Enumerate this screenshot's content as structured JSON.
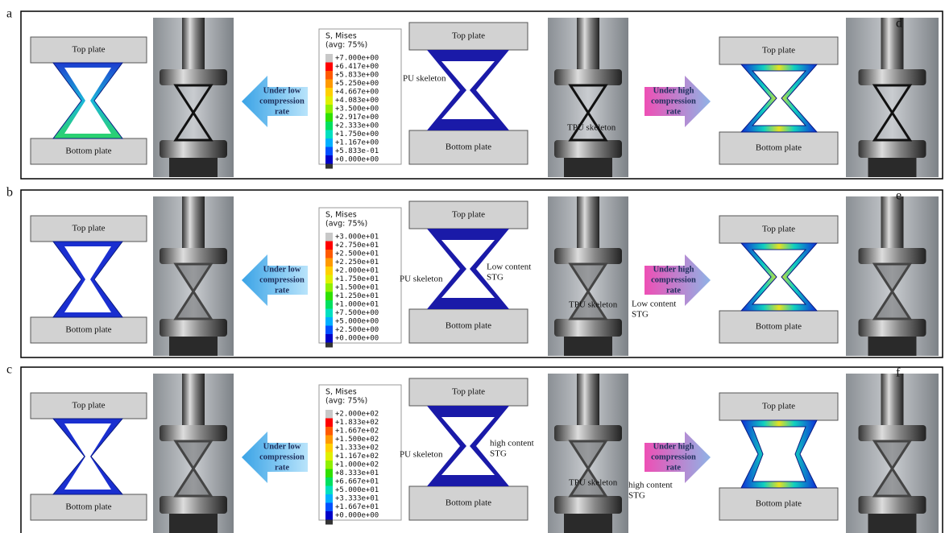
{
  "panels": [
    {
      "label": "a",
      "photo_label": "d",
      "left": {
        "top_plate": "Top plate",
        "bottom_plate": "Bottom plate"
      },
      "arrow_left": [
        "Under low",
        "compression",
        "rate"
      ],
      "legend": {
        "title": "S, Mises",
        "subtitle": "(avg: 75%)",
        "values": [
          "+7.000e+00",
          "+6.417e+00",
          "+5.833e+00",
          "+5.250e+00",
          "+4.667e+00",
          "+4.083e+00",
          "+3.500e+00",
          "+2.917e+00",
          "+2.333e+00",
          "+1.750e+00",
          "+1.167e+00",
          "+5.833e-01",
          "+0.000e+00"
        ]
      },
      "middle": {
        "top_plate": "Top plate",
        "bottom_plate": "Bottom plate",
        "annotations": [
          [
            "PU skeleton"
          ]
        ]
      },
      "photo_annotations": [
        [
          "TPU skeleton"
        ]
      ],
      "arrow_right": [
        "Under high",
        "compression",
        "rate"
      ],
      "right": {
        "top_plate": "Top plate",
        "bottom_plate": "Bottom plate"
      }
    },
    {
      "label": "b",
      "photo_label": "e",
      "left": {
        "top_plate": "Top plate",
        "bottom_plate": "Bottom plate"
      },
      "arrow_left": [
        "Under low",
        "compression",
        "rate"
      ],
      "legend": {
        "title": "S, Mises",
        "subtitle": "(avg: 75%)",
        "values": [
          "+3.000e+01",
          "+2.750e+01",
          "+2.500e+01",
          "+2.250e+01",
          "+2.000e+01",
          "+1.750e+01",
          "+1.500e+01",
          "+1.250e+01",
          "+1.000e+01",
          "+7.500e+00",
          "+5.000e+00",
          "+2.500e+00",
          "+0.000e+00"
        ]
      },
      "middle": {
        "top_plate": "Top plate",
        "bottom_plate": "Bottom plate",
        "annotations": [
          [
            "PU skeleton"
          ],
          [
            "Low content",
            "STG"
          ]
        ]
      },
      "photo_annotations": [
        [
          "TPU skeleton"
        ],
        [
          "Low content",
          "STG"
        ]
      ],
      "arrow_right": [
        "Under high",
        "compression",
        "rate"
      ],
      "right": {
        "top_plate": "Top plate",
        "bottom_plate": "Bottom plate"
      }
    },
    {
      "label": "c",
      "photo_label": "f",
      "left": {
        "top_plate": "Top plate",
        "bottom_plate": "Bottom plate"
      },
      "arrow_left": [
        "Under low",
        "compression",
        "rate"
      ],
      "legend": {
        "title": "S, Mises",
        "subtitle": "(avg: 75%)",
        "values": [
          "+2.000e+02",
          "+1.833e+02",
          "+1.667e+02",
          "+1.500e+02",
          "+1.333e+02",
          "+1.167e+02",
          "+1.000e+02",
          "+8.333e+01",
          "+6.667e+01",
          "+5.000e+01",
          "+3.333e+01",
          "+1.667e+01",
          "+0.000e+00"
        ]
      },
      "middle": {
        "top_plate": "Top plate",
        "bottom_plate": "Bottom plate",
        "annotations": [
          [
            "PU skeleton"
          ],
          [
            "high content",
            "STG"
          ]
        ]
      },
      "photo_annotations": [
        [
          "TPU skeleton"
        ],
        [
          "high content",
          "STG"
        ]
      ],
      "arrow_right": [
        "Under high",
        "compression",
        "rate"
      ],
      "right": {
        "top_plate": "Top plate",
        "bottom_plate": "Bottom plate"
      }
    }
  ]
}
